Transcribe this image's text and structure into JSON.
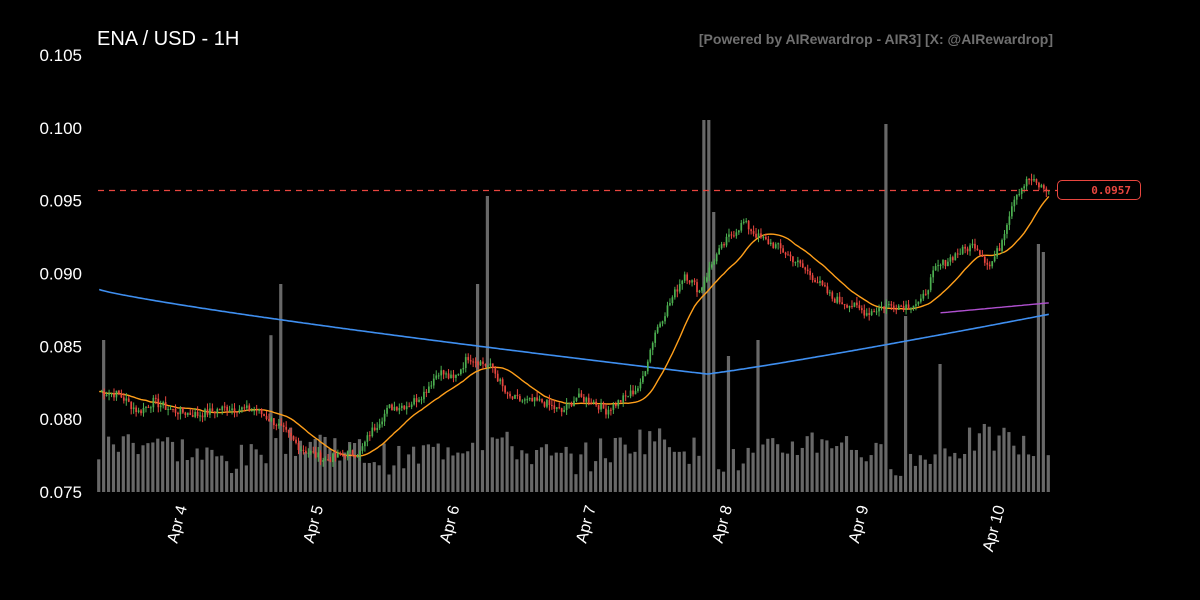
{
  "chart_data": {
    "type": "candlestick",
    "title": "ENA / USD - 1H",
    "credit": "[Powered by AIRewardrop - AIR3] [X: @AIRewardrop]",
    "ylim": [
      0.075,
      0.105
    ],
    "y_ticks": [
      "0.105",
      "0.100",
      "0.095",
      "0.090",
      "0.085",
      "0.080",
      "0.075"
    ],
    "x_ticks": [
      "Apr 4",
      "Apr 5",
      "Apr 6",
      "Apr 7",
      "Apr 8",
      "Apr 9",
      "Apr 10"
    ],
    "current_price": 0.0957,
    "current_price_label": "0.0957",
    "colors": {
      "up": "#4caf50",
      "down": "#e8463f",
      "volume": "#7a7a7a",
      "ma_fast": "#ff9f1a",
      "ma_slow": "#3f8ff0",
      "ma_mid": "#b050d0",
      "price_line": "#e8463f"
    },
    "close_anchors": [
      [
        0,
        0.0819
      ],
      [
        8,
        0.0817
      ],
      [
        16,
        0.0805
      ],
      [
        22,
        0.0812
      ],
      [
        30,
        0.0806
      ],
      [
        40,
        0.0803
      ],
      [
        52,
        0.0808
      ],
      [
        64,
        0.0806
      ],
      [
        72,
        0.0797
      ],
      [
        82,
        0.078
      ],
      [
        92,
        0.0772
      ],
      [
        100,
        0.0776
      ],
      [
        106,
        0.0777
      ],
      [
        110,
        0.079
      ],
      [
        118,
        0.0808
      ],
      [
        126,
        0.081
      ],
      [
        132,
        0.0818
      ],
      [
        138,
        0.0833
      ],
      [
        144,
        0.0827
      ],
      [
        150,
        0.0843
      ],
      [
        160,
        0.0835
      ],
      [
        166,
        0.0815
      ],
      [
        174,
        0.0812
      ],
      [
        180,
        0.0812
      ],
      [
        188,
        0.0805
      ],
      [
        194,
        0.0815
      ],
      [
        200,
        0.0813
      ],
      [
        206,
        0.0806
      ],
      [
        214,
        0.0815
      ],
      [
        220,
        0.0823
      ],
      [
        226,
        0.086
      ],
      [
        232,
        0.088
      ],
      [
        238,
        0.09
      ],
      [
        244,
        0.0888
      ],
      [
        250,
        0.091
      ],
      [
        256,
        0.0925
      ],
      [
        262,
        0.0935
      ],
      [
        268,
        0.0925
      ],
      [
        276,
        0.0918
      ],
      [
        282,
        0.091
      ],
      [
        290,
        0.0898
      ],
      [
        298,
        0.0883
      ],
      [
        306,
        0.0878
      ],
      [
        312,
        0.0873
      ],
      [
        320,
        0.0878
      ],
      [
        328,
        0.0878
      ],
      [
        334,
        0.088
      ],
      [
        340,
        0.0903
      ],
      [
        348,
        0.0913
      ],
      [
        356,
        0.092
      ],
      [
        362,
        0.0905
      ],
      [
        366,
        0.0918
      ],
      [
        372,
        0.0953
      ],
      [
        378,
        0.0965
      ],
      [
        382,
        0.096
      ],
      [
        386,
        0.0957
      ]
    ],
    "volume_spikes": [
      [
        2,
        0.95
      ],
      [
        70,
        0.98
      ],
      [
        74,
        1.3
      ],
      [
        158,
        1.85
      ],
      [
        154,
        1.3
      ],
      [
        246,
        2.4
      ],
      [
        248,
        2.35
      ],
      [
        250,
        1.75
      ],
      [
        256,
        0.85
      ],
      [
        268,
        0.95
      ],
      [
        320,
        2.3
      ],
      [
        328,
        1.1
      ],
      [
        342,
        0.8
      ],
      [
        382,
        1.55
      ],
      [
        384,
        1.5
      ],
      [
        388,
        1.4
      ]
    ],
    "bars": 390
  }
}
